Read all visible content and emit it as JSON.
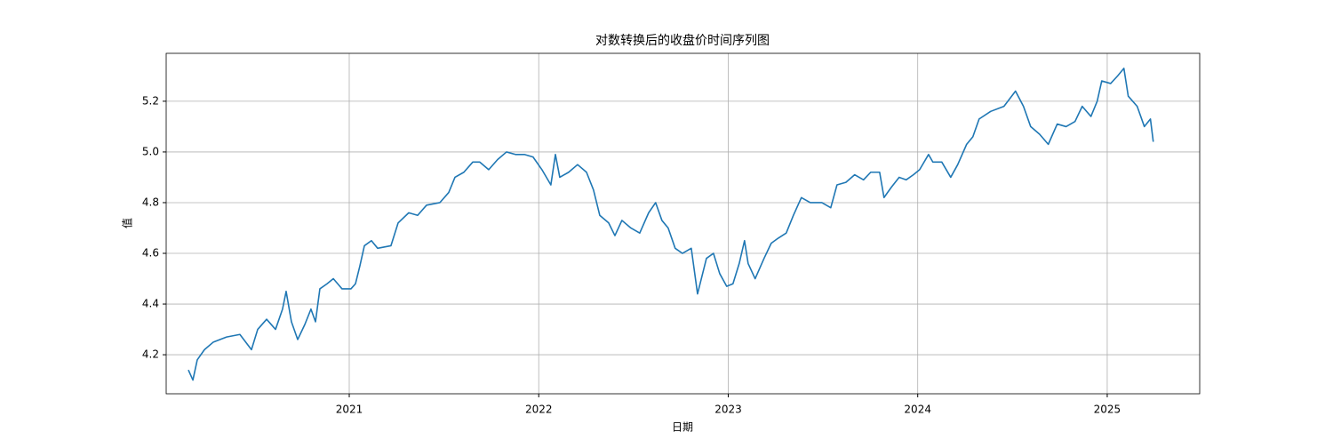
{
  "chart_data": {
    "type": "line",
    "title": "对数转换后的收盘价时间序列图",
    "x_label": "日期",
    "y_label": "值",
    "grid": true,
    "xlim": [
      2020.034,
      2025.488
    ],
    "xticks": [
      2021,
      2022,
      2023,
      2024,
      2025
    ],
    "ylim": [
      4.046,
      5.389
    ],
    "yticks": [
      4.2,
      4.4,
      4.6,
      4.8,
      {
        "value": 5,
        "label": "5.0"
      },
      5.2
    ],
    "x": [
      2020.151,
      2020.175,
      2020.198,
      2020.236,
      2020.283,
      2020.353,
      2020.423,
      2020.484,
      2020.517,
      2020.564,
      2020.611,
      2020.648,
      2020.667,
      2020.695,
      2020.728,
      2020.766,
      2020.798,
      2020.822,
      2020.845,
      2020.883,
      2020.916,
      2020.962,
      2021.009,
      2021.033,
      2021.056,
      2021.08,
      2021.117,
      2021.15,
      2021.22,
      2021.258,
      2021.314,
      2021.361,
      2021.408,
      2021.478,
      2021.525,
      2021.558,
      2021.605,
      2021.652,
      2021.689,
      2021.736,
      2021.783,
      2021.83,
      2021.877,
      2021.924,
      2021.97,
      2022.017,
      2022.064,
      2022.088,
      2022.111,
      2022.158,
      2022.205,
      2022.252,
      2022.289,
      2022.322,
      2022.369,
      2022.402,
      2022.439,
      2022.486,
      2022.533,
      2022.58,
      2022.617,
      2022.65,
      2022.683,
      2022.72,
      2022.758,
      2022.805,
      2022.838,
      2022.885,
      2022.922,
      2022.955,
      2022.992,
      2023.025,
      2023.058,
      2023.086,
      2023.105,
      2023.142,
      2023.189,
      2023.227,
      2023.264,
      2023.306,
      2023.344,
      2023.386,
      2023.433,
      2023.494,
      2023.541,
      2023.574,
      2023.621,
      2023.667,
      2023.714,
      2023.752,
      2023.799,
      2023.822,
      2023.86,
      2023.902,
      2023.939,
      2023.977,
      2024.01,
      2024.057,
      2024.08,
      2024.127,
      2024.174,
      2024.211,
      2024.258,
      2024.291,
      2024.324,
      2024.385,
      2024.455,
      2024.516,
      2024.558,
      2024.596,
      2024.643,
      2024.689,
      2024.736,
      2024.783,
      2024.83,
      2024.868,
      2024.914,
      2024.947,
      2024.971,
      2025.018,
      2025.055,
      2025.088,
      2025.111,
      2025.158,
      2025.196,
      2025.228,
      2025.243
    ],
    "series": [
      {
        "color": "#1f77b4",
        "values": [
          4.14,
          4.1,
          4.18,
          4.22,
          4.25,
          4.27,
          4.28,
          4.22,
          4.3,
          4.34,
          4.3,
          4.38,
          4.45,
          4.33,
          4.26,
          4.32,
          4.38,
          4.33,
          4.46,
          4.48,
          4.5,
          4.46,
          4.46,
          4.48,
          4.55,
          4.63,
          4.65,
          4.62,
          4.63,
          4.72,
          4.76,
          4.75,
          4.79,
          4.8,
          4.84,
          4.9,
          4.92,
          4.96,
          4.96,
          4.93,
          4.97,
          5.0,
          4.99,
          4.99,
          4.98,
          4.93,
          4.87,
          4.99,
          4.9,
          4.92,
          4.95,
          4.92,
          4.85,
          4.75,
          4.72,
          4.67,
          4.73,
          4.7,
          4.68,
          4.76,
          4.8,
          4.73,
          4.7,
          4.62,
          4.6,
          4.62,
          4.44,
          4.58,
          4.6,
          4.52,
          4.47,
          4.48,
          4.56,
          4.65,
          4.56,
          4.5,
          4.58,
          4.64,
          4.66,
          4.68,
          4.75,
          4.82,
          4.8,
          4.8,
          4.78,
          4.87,
          4.88,
          4.91,
          4.89,
          4.92,
          4.92,
          4.82,
          4.86,
          4.9,
          4.89,
          4.91,
          4.93,
          4.99,
          4.96,
          4.96,
          4.9,
          4.95,
          5.03,
          5.06,
          5.13,
          5.16,
          5.18,
          5.24,
          5.18,
          5.1,
          5.07,
          5.03,
          5.11,
          5.1,
          5.12,
          5.18,
          5.14,
          5.2,
          5.28,
          5.27,
          5.3,
          5.33,
          5.22,
          5.18,
          5.1,
          5.13,
          5.04
        ]
      }
    ]
  }
}
